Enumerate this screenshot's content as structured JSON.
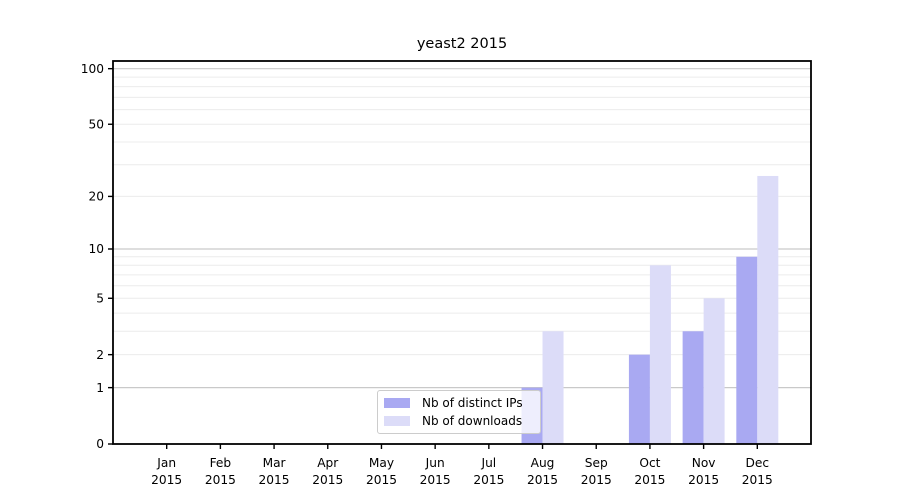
{
  "chart_data": {
    "type": "bar",
    "title": "yeast2 2015",
    "categories": [
      "Jan 2015",
      "Feb 2015",
      "Mar 2015",
      "Apr 2015",
      "May 2015",
      "Jun 2015",
      "Jul 2015",
      "Aug 2015",
      "Sep 2015",
      "Oct 2015",
      "Nov 2015",
      "Dec 2015"
    ],
    "series": [
      {
        "name": "Nb of distinct IPs",
        "color": "#a9a9f2",
        "values": [
          0,
          0,
          0,
          0,
          0,
          0,
          0,
          1,
          0,
          2,
          3,
          9
        ]
      },
      {
        "name": "Nb of downloads",
        "color": "#dcdcf8",
        "values": [
          0,
          0,
          0,
          0,
          0,
          0,
          0,
          3,
          0,
          8,
          5,
          26
        ]
      }
    ],
    "xlabel": "",
    "ylabel": "",
    "y_scale": "symlog (position proportional to log1p(value))",
    "y_ticks": [
      0,
      1,
      2,
      5,
      10,
      20,
      50,
      100
    ],
    "y_major_gridlines": [
      1,
      10,
      100
    ],
    "y_minor_gridlines": [
      2,
      3,
      4,
      5,
      6,
      7,
      8,
      9,
      20,
      30,
      40,
      50,
      60,
      70,
      80,
      90
    ],
    "ylim": [
      0,
      110
    ],
    "grid": "horizontal",
    "legend_position": "inside lower-center",
    "colors": {
      "axis_frame": "#000000",
      "tick_text": "#000000",
      "major_grid": "#c9c9c9",
      "minor_grid": "#ececec",
      "background": "#ffffff"
    }
  }
}
